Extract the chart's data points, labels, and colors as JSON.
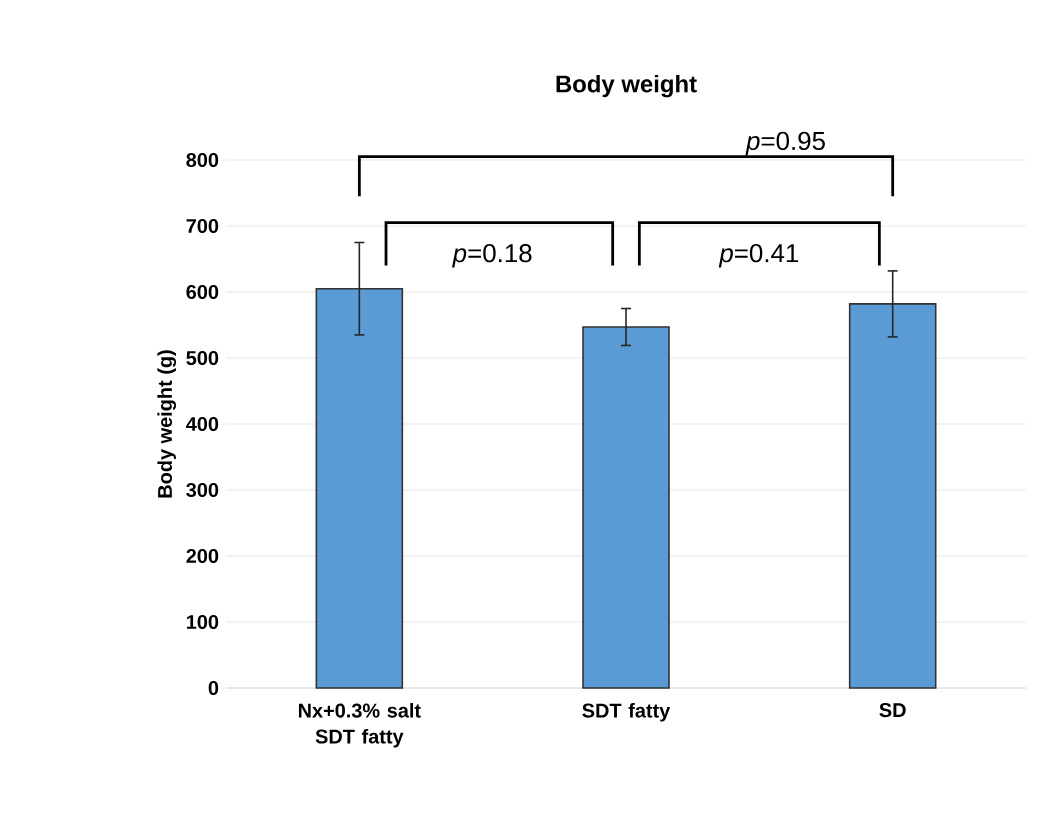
{
  "chart_data": {
    "type": "bar",
    "title": "Body weight",
    "ylabel": "Body weight (g)",
    "categories": [
      "Nx+0.3% salt SDT fatty",
      "SDT fatty",
      "SD"
    ],
    "values": [
      605,
      547,
      582
    ],
    "errors": [
      70,
      28,
      50
    ],
    "color": "#5b9bd5",
    "ylim": [
      0,
      800
    ],
    "yticks": [
      0,
      100,
      200,
      300,
      400,
      500,
      600,
      700,
      800
    ],
    "grid": "y",
    "annotations": [
      "*p*=0.18",
      "*p*=0.41",
      "*p*=0.95"
    ]
  }
}
